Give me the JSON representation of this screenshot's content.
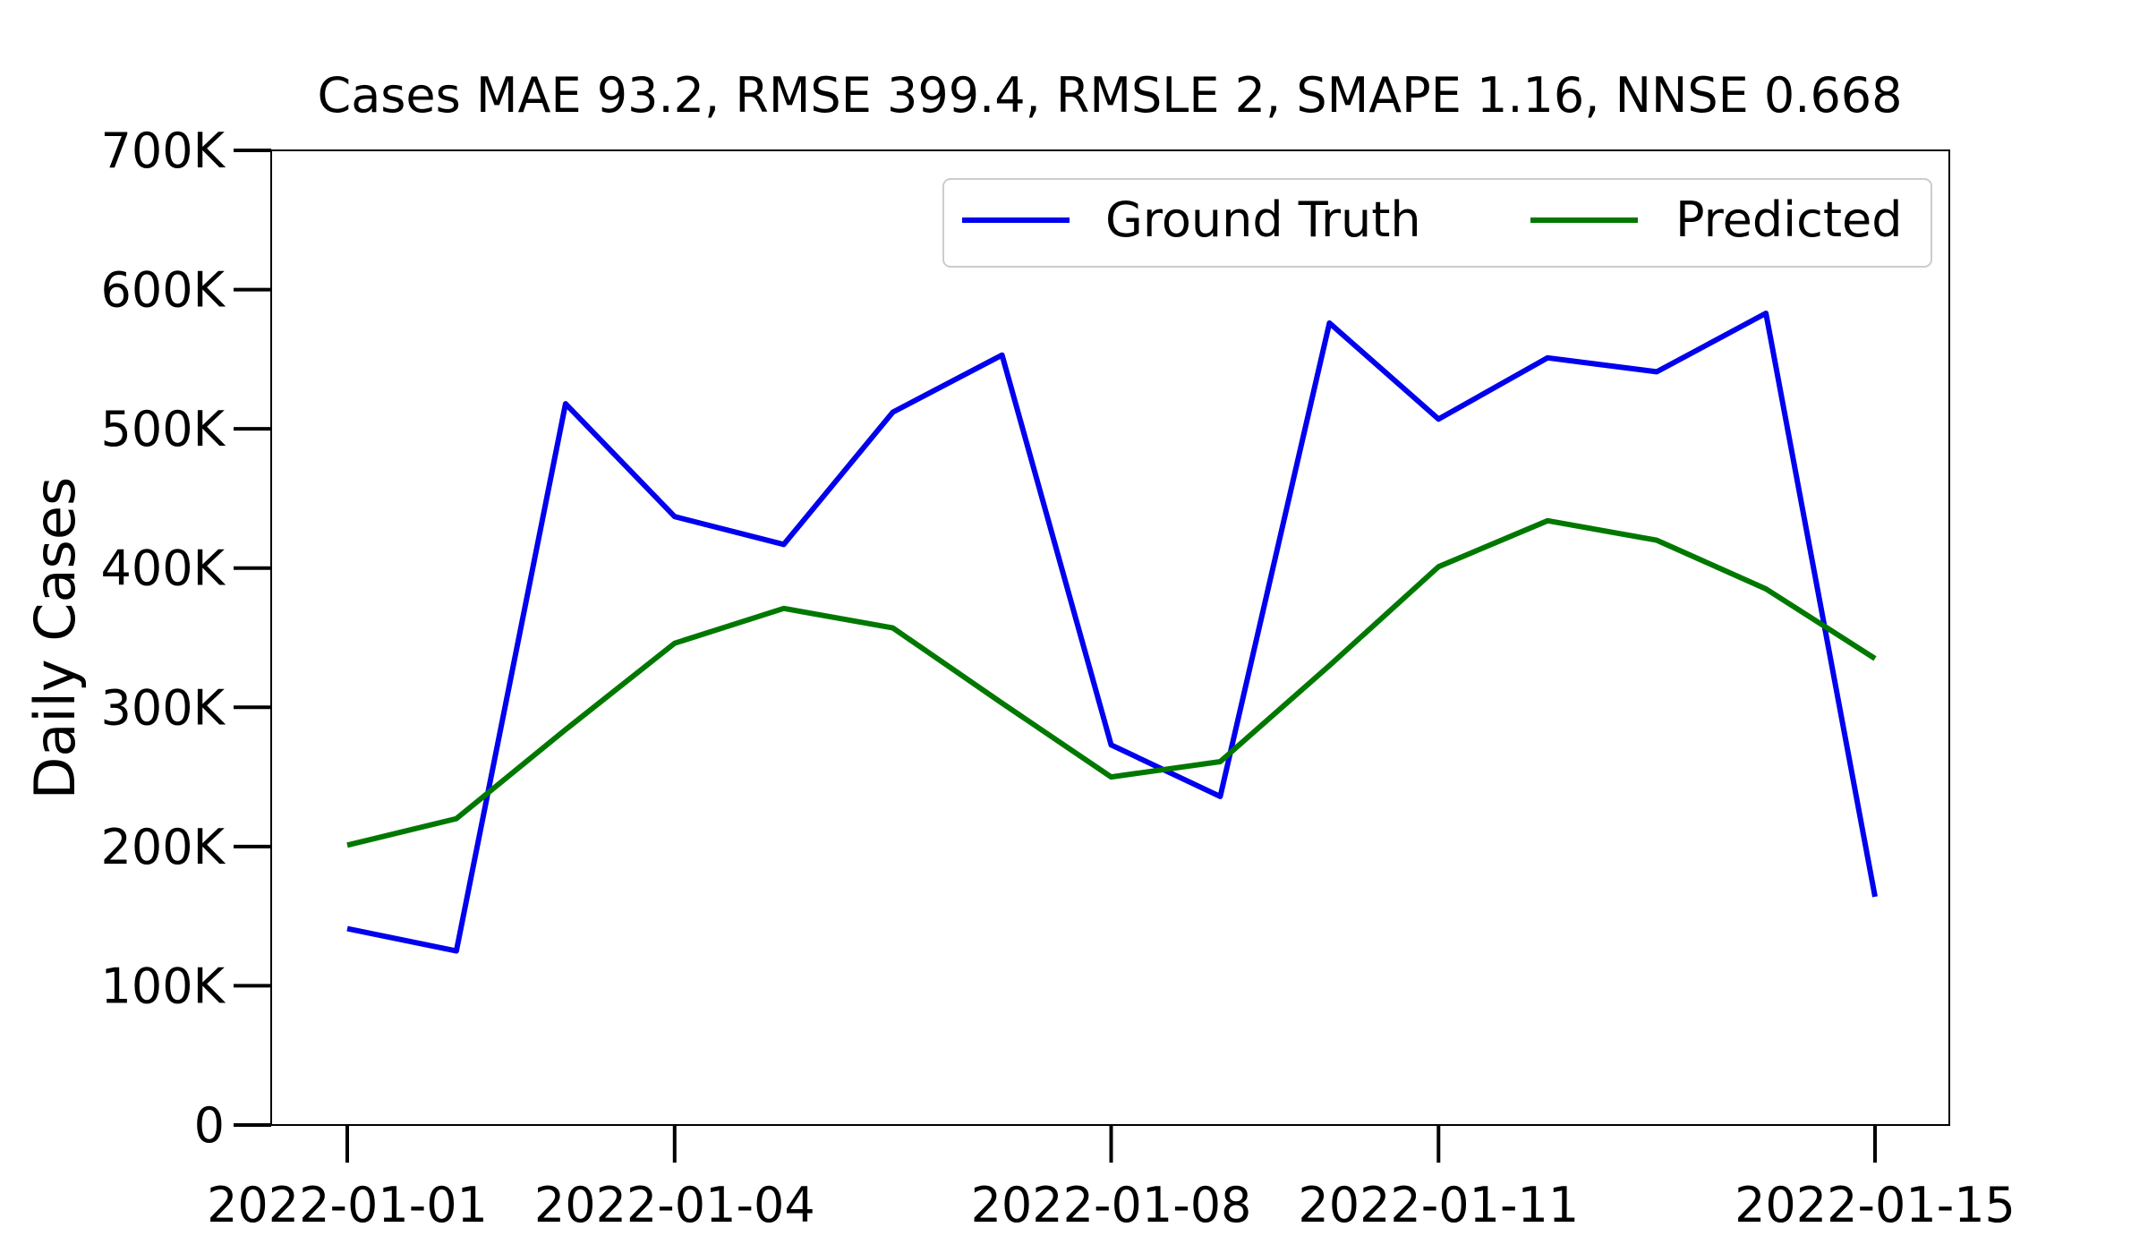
{
  "chart_data": {
    "type": "line",
    "title": "Cases MAE 93.2, RMSE 399.4, RMSLE 2, SMAPE 1.16, NNSE 0.668",
    "xlabel": "",
    "ylabel": "Daily Cases",
    "x": [
      "2022-01-01",
      "2022-01-02",
      "2022-01-03",
      "2022-01-04",
      "2022-01-05",
      "2022-01-06",
      "2022-01-07",
      "2022-01-08",
      "2022-01-09",
      "2022-01-10",
      "2022-01-11",
      "2022-01-12",
      "2022-01-13",
      "2022-01-14",
      "2022-01-15"
    ],
    "x_ticks": [
      "2022-01-01",
      "2022-01-04",
      "2022-01-08",
      "2022-01-11",
      "2022-01-15"
    ],
    "ylim": [
      0,
      700000
    ],
    "y_ticks": [
      0,
      100000,
      200000,
      300000,
      400000,
      500000,
      600000,
      700000
    ],
    "y_tick_labels": [
      "0",
      "100K",
      "200K",
      "300K",
      "400K",
      "500K",
      "600K",
      "700K"
    ],
    "series": [
      {
        "name": "Ground Truth",
        "color": "#0000ee",
        "values": [
          141000,
          125000,
          518000,
          437000,
          417000,
          512000,
          553000,
          273000,
          236000,
          576000,
          507000,
          551000,
          541000,
          583000,
          164000
        ]
      },
      {
        "name": "Predicted",
        "color": "#007800",
        "values": [
          201000,
          220000,
          284000,
          346000,
          371000,
          357000,
          303000,
          250000,
          261000,
          330000,
          401000,
          434000,
          420000,
          385000,
          335000
        ]
      }
    ],
    "legend": {
      "position": "top-right",
      "columns": 2
    },
    "grid": false
  }
}
